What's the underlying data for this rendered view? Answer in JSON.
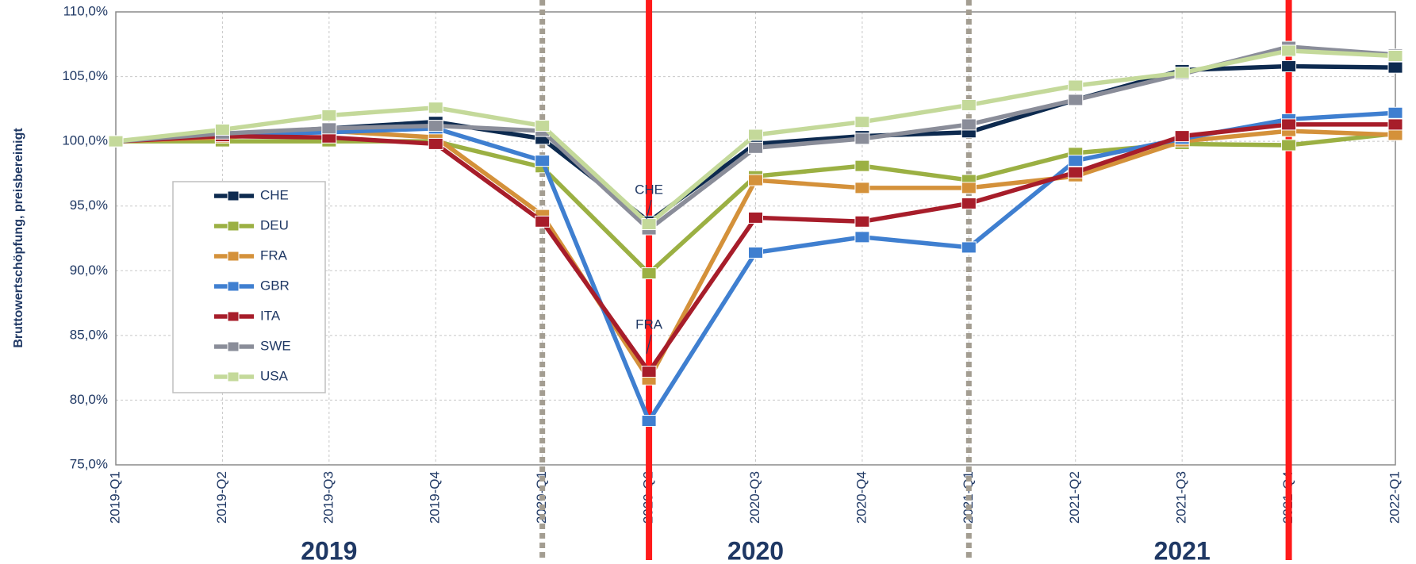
{
  "chart_data": {
    "type": "line",
    "ylabel": "Bruttowertschöpfung, preisbereinigt",
    "categories": [
      "2019-Q1",
      "2019-Q2",
      "2019-Q3",
      "2019-Q4",
      "2020-Q1",
      "2020-Q2",
      "2020-Q3",
      "2020-Q4",
      "2021-Q1",
      "2021-Q2",
      "2021-Q3",
      "2021-Q4",
      "2022-Q1"
    ],
    "year_labels": [
      "2019",
      "2020",
      "2021"
    ],
    "ylim": [
      75,
      110
    ],
    "yticks": [
      {
        "value": 75,
        "label": "75,0%"
      },
      {
        "value": 80,
        "label": "80,0%"
      },
      {
        "value": 85,
        "label": "85,0%"
      },
      {
        "value": 90,
        "label": "90,0%"
      },
      {
        "value": 95,
        "label": "95,0%"
      },
      {
        "value": 100,
        "label": "100,0%"
      },
      {
        "value": 105,
        "label": "105,0%"
      },
      {
        "value": 110,
        "label": "110,0%"
      }
    ],
    "grid": true,
    "legend": "left",
    "series": [
      {
        "name": "CHE",
        "color": "#0d2a4f",
        "values": [
          100,
          100.5,
          101.0,
          101.5,
          100.2,
          93.8,
          99.8,
          100.4,
          100.7,
          103.2,
          105.5,
          105.8,
          105.7
        ]
      },
      {
        "name": "DEU",
        "color": "#9bb043",
        "values": [
          100,
          100.0,
          100.0,
          100.0,
          98.0,
          89.8,
          97.3,
          98.1,
          97.0,
          99.1,
          99.8,
          99.7,
          100.6
        ]
      },
      {
        "name": "FRA",
        "color": "#d4913a",
        "values": [
          100,
          100.3,
          100.8,
          100.3,
          94.3,
          81.6,
          97.0,
          96.4,
          96.4,
          97.3,
          100.0,
          100.8,
          100.5
        ]
      },
      {
        "name": "GBR",
        "color": "#3f7fd0",
        "values": [
          100,
          100.5,
          100.7,
          101.0,
          98.5,
          78.4,
          91.4,
          92.6,
          91.8,
          98.5,
          100.2,
          101.7,
          102.2
        ]
      },
      {
        "name": "ITA",
        "color": "#a71d2a",
        "values": [
          100,
          100.4,
          100.3,
          99.8,
          93.8,
          82.2,
          94.1,
          93.8,
          95.2,
          97.6,
          100.4,
          101.3,
          101.3
        ]
      },
      {
        "name": "SWE",
        "color": "#8a8d99",
        "values": [
          100,
          100.6,
          101.0,
          101.2,
          100.8,
          93.2,
          99.5,
          100.2,
          101.3,
          103.2,
          105.2,
          107.3,
          106.7
        ]
      },
      {
        "name": "USA",
        "color": "#c4d99a",
        "values": [
          100,
          100.9,
          102.0,
          102.6,
          101.2,
          93.6,
          100.5,
          101.5,
          102.8,
          104.3,
          105.3,
          107.0,
          106.6
        ]
      }
    ],
    "vlines": [
      {
        "x": "2020-Q1",
        "style": "dashed",
        "color": "#a39d91"
      },
      {
        "x": "2020-Q2",
        "style": "solid",
        "color": "#ff1a1a"
      },
      {
        "x": "2021-Q1",
        "style": "dashed",
        "color": "#a39d91"
      },
      {
        "x": "2021-Q4",
        "style": "solid",
        "color": "#ff1a1a"
      }
    ],
    "annotations": [
      {
        "text": "CHE",
        "x": "2020-Q2",
        "y": 96.2
      },
      {
        "text": "FRA",
        "x": "2020-Q2",
        "y": 85.8
      }
    ]
  }
}
